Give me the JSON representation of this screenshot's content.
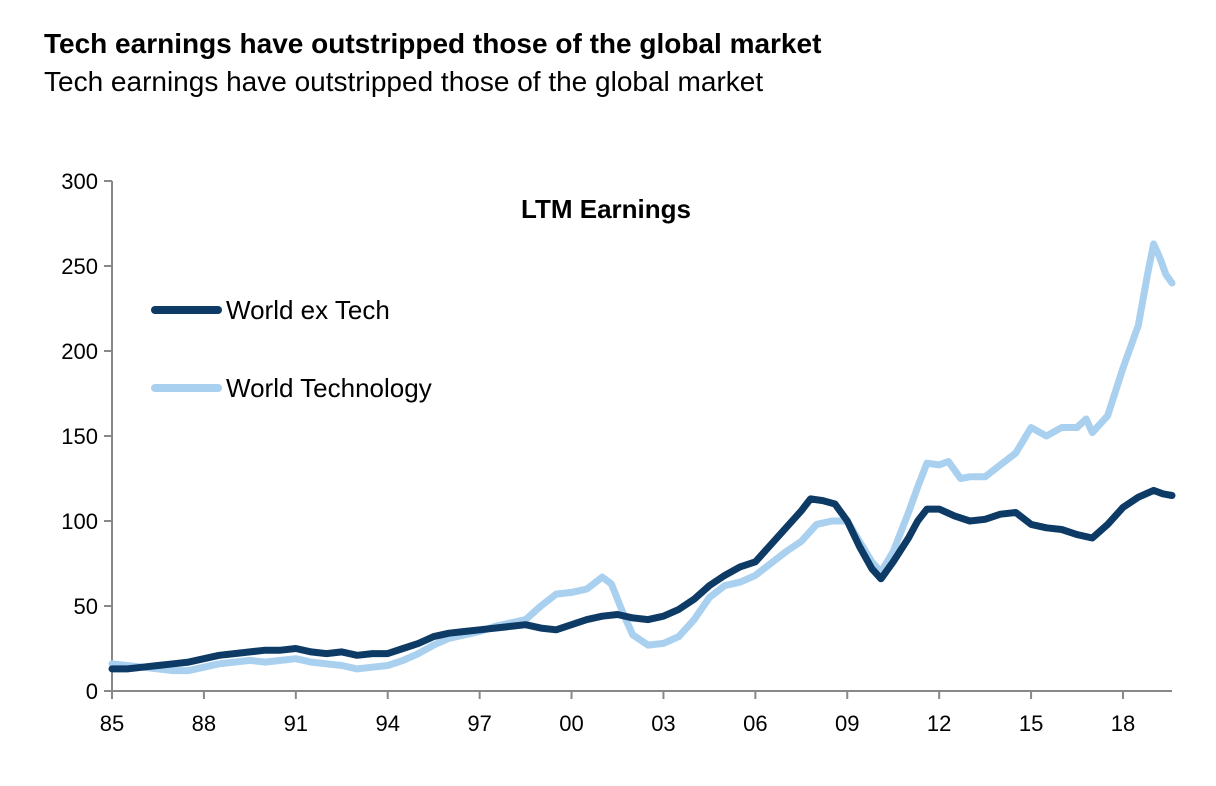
{
  "header": {
    "title": "Tech earnings have outstripped those of the global market",
    "subtitle": "Tech earnings have outstripped those of the global market"
  },
  "chart_data": {
    "type": "line",
    "title": "LTM Earnings",
    "xlabel": "",
    "ylabel": "",
    "xlim": [
      1985,
      2019.6
    ],
    "ylim": [
      0,
      300
    ],
    "y_ticks": [
      0,
      50,
      100,
      150,
      200,
      250,
      300
    ],
    "x_ticks": [
      {
        "value": 1985,
        "label": "85"
      },
      {
        "value": 1988,
        "label": "88"
      },
      {
        "value": 1991,
        "label": "91"
      },
      {
        "value": 1994,
        "label": "94"
      },
      {
        "value": 1997,
        "label": "97"
      },
      {
        "value": 2000,
        "label": "00"
      },
      {
        "value": 2003,
        "label": "03"
      },
      {
        "value": 2006,
        "label": "06"
      },
      {
        "value": 2009,
        "label": "09"
      },
      {
        "value": 2012,
        "label": "12"
      },
      {
        "value": 2015,
        "label": "15"
      },
      {
        "value": 2018,
        "label": "18"
      }
    ],
    "legend_position": "upper-left",
    "grid": false,
    "series": [
      {
        "name": "World ex Tech",
        "color": "#0d3b66",
        "points": [
          [
            1985.0,
            13
          ],
          [
            1985.5,
            13
          ],
          [
            1986.0,
            14
          ],
          [
            1986.5,
            15
          ],
          [
            1987.0,
            16
          ],
          [
            1987.5,
            17
          ],
          [
            1988.0,
            19
          ],
          [
            1988.5,
            21
          ],
          [
            1989.0,
            22
          ],
          [
            1989.5,
            23
          ],
          [
            1990.0,
            24
          ],
          [
            1990.5,
            24
          ],
          [
            1991.0,
            25
          ],
          [
            1991.5,
            23
          ],
          [
            1992.0,
            22
          ],
          [
            1992.5,
            23
          ],
          [
            1993.0,
            21
          ],
          [
            1993.5,
            22
          ],
          [
            1994.0,
            22
          ],
          [
            1994.5,
            25
          ],
          [
            1995.0,
            28
          ],
          [
            1995.5,
            32
          ],
          [
            1996.0,
            34
          ],
          [
            1996.5,
            35
          ],
          [
            1997.0,
            36
          ],
          [
            1997.5,
            37
          ],
          [
            1998.0,
            38
          ],
          [
            1998.5,
            39
          ],
          [
            1999.0,
            37
          ],
          [
            1999.5,
            36
          ],
          [
            2000.0,
            39
          ],
          [
            2000.5,
            42
          ],
          [
            2001.0,
            44
          ],
          [
            2001.5,
            45
          ],
          [
            2002.0,
            43
          ],
          [
            2002.5,
            42
          ],
          [
            2003.0,
            44
          ],
          [
            2003.5,
            48
          ],
          [
            2004.0,
            54
          ],
          [
            2004.5,
            62
          ],
          [
            2005.0,
            68
          ],
          [
            2005.5,
            73
          ],
          [
            2006.0,
            76
          ],
          [
            2006.5,
            86
          ],
          [
            2007.0,
            96
          ],
          [
            2007.5,
            106
          ],
          [
            2007.8,
            113
          ],
          [
            2008.2,
            112
          ],
          [
            2008.6,
            110
          ],
          [
            2009.0,
            100
          ],
          [
            2009.4,
            85
          ],
          [
            2009.8,
            72
          ],
          [
            2010.1,
            66
          ],
          [
            2010.5,
            76
          ],
          [
            2011.0,
            90
          ],
          [
            2011.3,
            100
          ],
          [
            2011.6,
            107
          ],
          [
            2012.0,
            107
          ],
          [
            2012.5,
            103
          ],
          [
            2013.0,
            100
          ],
          [
            2013.5,
            101
          ],
          [
            2014.0,
            104
          ],
          [
            2014.5,
            105
          ],
          [
            2015.0,
            98
          ],
          [
            2015.5,
            96
          ],
          [
            2016.0,
            95
          ],
          [
            2016.5,
            92
          ],
          [
            2017.0,
            90
          ],
          [
            2017.5,
            98
          ],
          [
            2018.0,
            108
          ],
          [
            2018.5,
            114
          ],
          [
            2019.0,
            118
          ],
          [
            2019.3,
            116
          ],
          [
            2019.6,
            115
          ]
        ]
      },
      {
        "name": "World Technology",
        "color": "#a9d0ef",
        "points": [
          [
            1985.0,
            16
          ],
          [
            1985.5,
            15
          ],
          [
            1986.0,
            14
          ],
          [
            1986.5,
            13
          ],
          [
            1987.0,
            12
          ],
          [
            1987.5,
            12
          ],
          [
            1988.0,
            14
          ],
          [
            1988.5,
            16
          ],
          [
            1989.0,
            17
          ],
          [
            1989.5,
            18
          ],
          [
            1990.0,
            17
          ],
          [
            1990.5,
            18
          ],
          [
            1991.0,
            19
          ],
          [
            1991.5,
            17
          ],
          [
            1992.0,
            16
          ],
          [
            1992.5,
            15
          ],
          [
            1993.0,
            13
          ],
          [
            1993.5,
            14
          ],
          [
            1994.0,
            15
          ],
          [
            1994.5,
            18
          ],
          [
            1995.0,
            22
          ],
          [
            1995.5,
            27
          ],
          [
            1996.0,
            31
          ],
          [
            1996.5,
            33
          ],
          [
            1997.0,
            35
          ],
          [
            1997.5,
            38
          ],
          [
            1998.0,
            40
          ],
          [
            1998.5,
            42
          ],
          [
            1999.0,
            50
          ],
          [
            1999.5,
            57
          ],
          [
            2000.0,
            58
          ],
          [
            2000.5,
            60
          ],
          [
            2001.0,
            67
          ],
          [
            2001.3,
            63
          ],
          [
            2001.7,
            45
          ],
          [
            2002.0,
            33
          ],
          [
            2002.5,
            27
          ],
          [
            2003.0,
            28
          ],
          [
            2003.5,
            32
          ],
          [
            2004.0,
            42
          ],
          [
            2004.5,
            55
          ],
          [
            2005.0,
            62
          ],
          [
            2005.5,
            64
          ],
          [
            2006.0,
            68
          ],
          [
            2006.5,
            75
          ],
          [
            2007.0,
            82
          ],
          [
            2007.5,
            88
          ],
          [
            2008.0,
            98
          ],
          [
            2008.5,
            100
          ],
          [
            2009.0,
            100
          ],
          [
            2009.4,
            88
          ],
          [
            2009.8,
            76
          ],
          [
            2010.1,
            70
          ],
          [
            2010.5,
            82
          ],
          [
            2011.0,
            105
          ],
          [
            2011.3,
            120
          ],
          [
            2011.6,
            134
          ],
          [
            2012.0,
            133
          ],
          [
            2012.3,
            135
          ],
          [
            2012.7,
            125
          ],
          [
            2013.0,
            126
          ],
          [
            2013.5,
            126
          ],
          [
            2014.0,
            133
          ],
          [
            2014.5,
            140
          ],
          [
            2015.0,
            155
          ],
          [
            2015.5,
            150
          ],
          [
            2016.0,
            155
          ],
          [
            2016.5,
            155
          ],
          [
            2016.8,
            160
          ],
          [
            2017.0,
            152
          ],
          [
            2017.5,
            162
          ],
          [
            2018.0,
            190
          ],
          [
            2018.5,
            215
          ],
          [
            2018.8,
            245
          ],
          [
            2019.0,
            263
          ],
          [
            2019.2,
            255
          ],
          [
            2019.4,
            245
          ],
          [
            2019.6,
            240
          ]
        ]
      }
    ]
  }
}
